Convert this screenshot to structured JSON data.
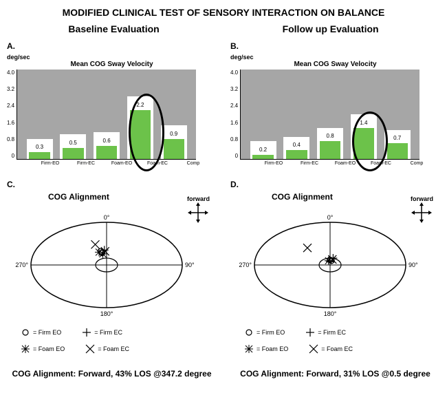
{
  "main_title": "MODIFIED CLINICAL TEST OF SENSORY INTERACTION ON BALANCE",
  "col_left_title": "Baseline Evaluation",
  "col_right_title": "Follow up Evaluation",
  "panels": {
    "A": {
      "label": "A."
    },
    "B": {
      "label": "B."
    },
    "C": {
      "label": "C."
    },
    "D": {
      "label": "D."
    }
  },
  "chart": {
    "y_unit": "deg/sec",
    "title": "Mean COG Sway Velocity",
    "ymax": 4.0,
    "ticks": [
      "4.0",
      "3.2",
      "2.4",
      "1.6",
      "0.8",
      "0"
    ],
    "categories": [
      "Firm-EO",
      "Firm-EC",
      "Foam-EO",
      "Foam-EC",
      "Comp"
    ],
    "white_extra": 0.15,
    "bar_color": "#6cc24a",
    "plot_bg": "#a6a6a6",
    "highlight_index": 3,
    "A_values": [
      0.3,
      0.5,
      0.6,
      2.2,
      0.9
    ],
    "B_values": [
      0.2,
      0.4,
      0.8,
      1.4,
      0.7
    ]
  },
  "cog": {
    "title": "COG Alignment",
    "forward_label": "forward",
    "angles": [
      "0°",
      "90°",
      "180°",
      "270°"
    ],
    "legend": {
      "firm_eo": "= Firm EO",
      "firm_ec": "= Firm EC",
      "foam_eo": "= Foam EO",
      "foam_ec": "= Foam EC"
    },
    "C_points": {
      "circle": [
        [
          -0.08,
          0.32
        ],
        [
          -0.06,
          0.28
        ]
      ],
      "plus": [
        [
          -0.03,
          0.35
        ]
      ],
      "star": [
        [
          -0.1,
          0.3
        ],
        [
          -0.05,
          0.26
        ]
      ],
      "x": [
        [
          -0.15,
          0.48
        ],
        [
          -0.02,
          0.32
        ]
      ]
    },
    "D_points": {
      "circle": [
        [
          0.0,
          0.12
        ],
        [
          0.02,
          0.1
        ]
      ],
      "plus": [
        [
          0.04,
          0.16
        ],
        [
          0.0,
          0.08
        ]
      ],
      "star": [
        [
          -0.02,
          0.1
        ]
      ],
      "x": [
        [
          -0.3,
          0.4
        ],
        [
          0.03,
          0.13
        ]
      ]
    }
  },
  "footer": {
    "C": "COG Alignment: Forward, 43% LOS @347.2 degree",
    "D": "COG Alignment: Forward, 31% LOS @0.5 degree"
  }
}
